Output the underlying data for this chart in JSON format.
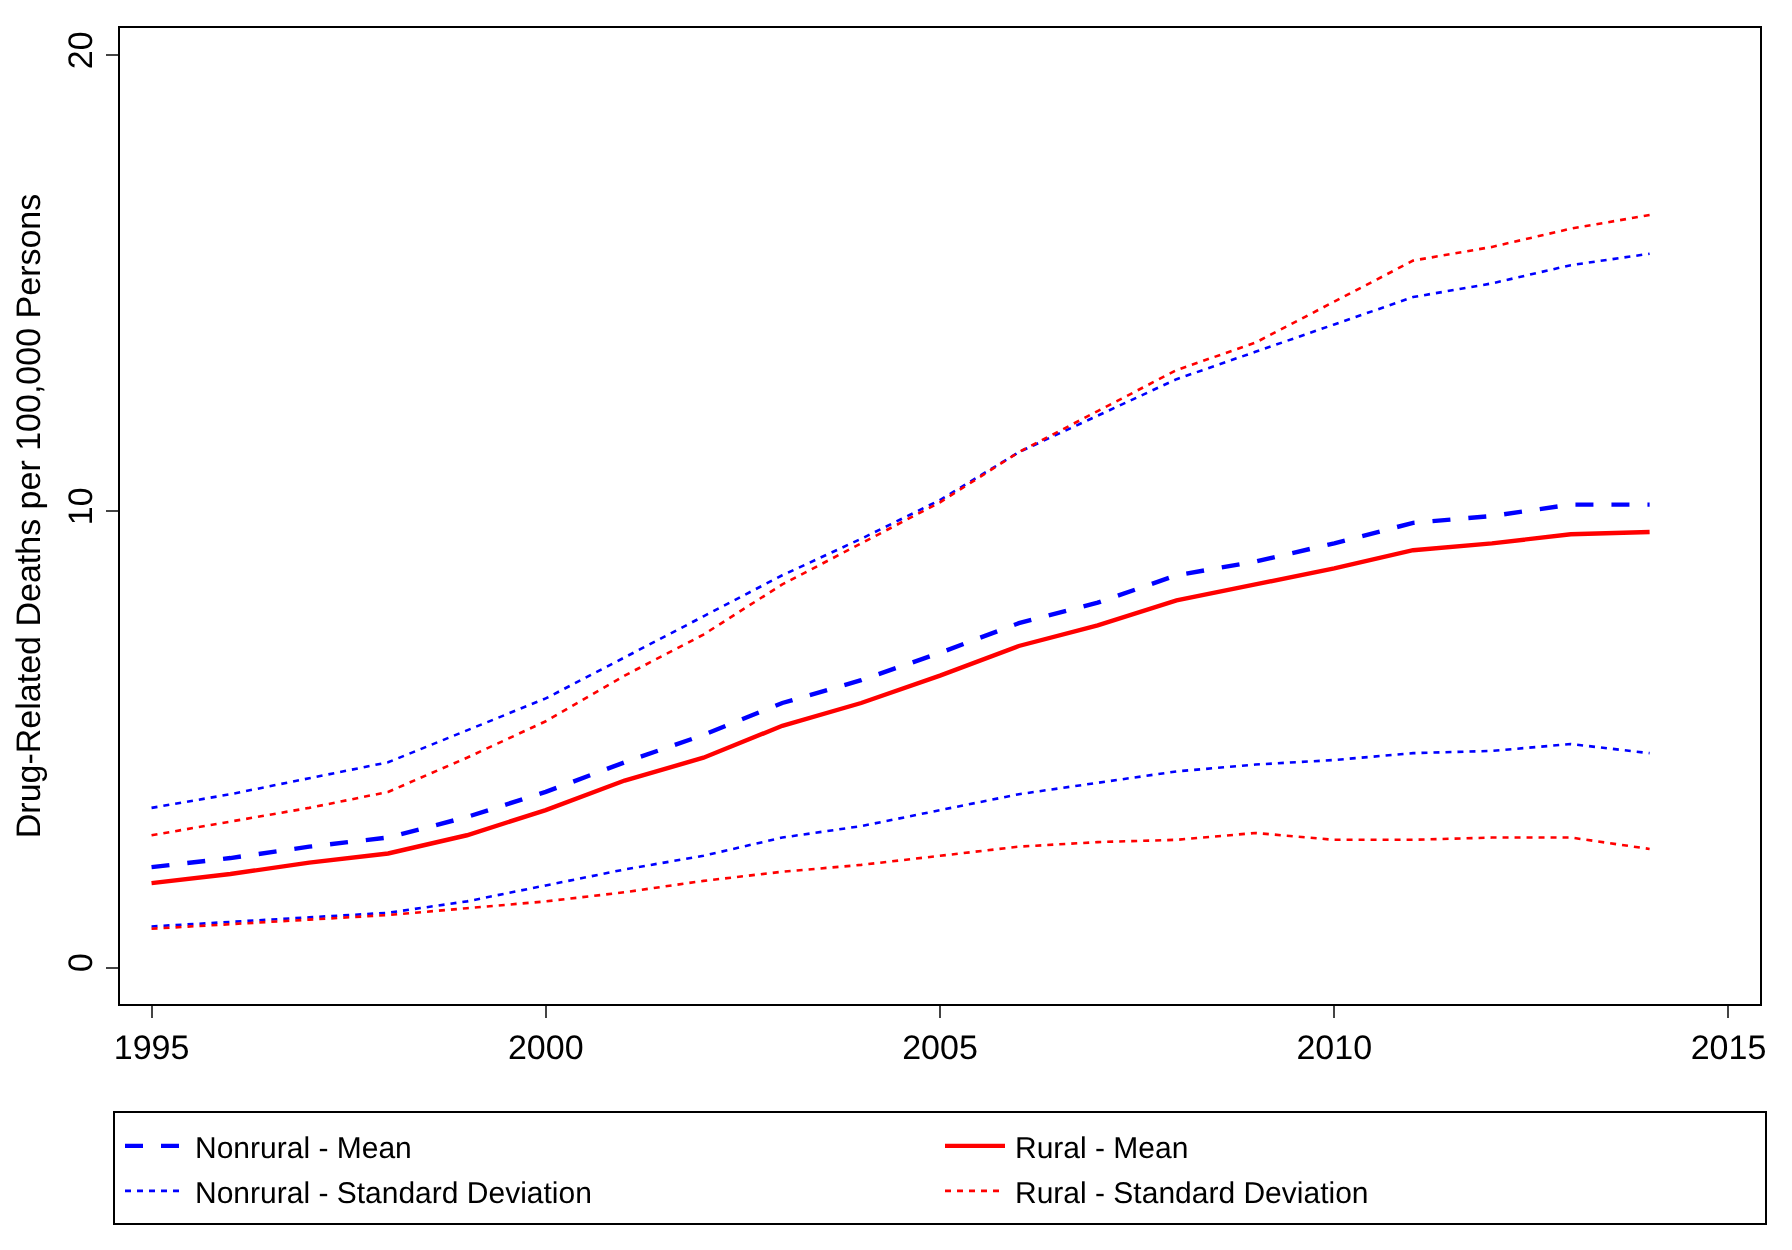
{
  "chart_data": {
    "type": "line",
    "ylabel": "Drug-Related Deaths per 100,000 Persons",
    "x": [
      1995,
      1996,
      1997,
      1998,
      1999,
      2000,
      2001,
      2002,
      2003,
      2004,
      2005,
      2006,
      2007,
      2008,
      2009,
      2010,
      2011,
      2012,
      2013,
      2014
    ],
    "xlim": [
      1994.6,
      2015.4
    ],
    "xticks": [
      1995,
      2000,
      2005,
      2010,
      2015
    ],
    "ylim": [
      -0.8,
      20.6
    ],
    "yticks": [
      0,
      10,
      20
    ],
    "legend": "bottom",
    "series": [
      {
        "name": "Nonrural - Mean",
        "color": "#0000ff",
        "line_style": "dashed",
        "values": [
          2.2,
          2.4,
          2.65,
          2.85,
          3.3,
          3.85,
          4.5,
          5.1,
          5.8,
          6.3,
          6.9,
          7.55,
          8.0,
          8.6,
          8.9,
          9.3,
          9.75,
          9.9,
          10.15,
          10.15
        ]
      },
      {
        "name": "Rural - Mean",
        "color": "#ff0000",
        "line_style": "solid",
        "values": [
          1.85,
          2.05,
          2.3,
          2.5,
          2.9,
          3.45,
          4.1,
          4.6,
          5.3,
          5.8,
          6.4,
          7.05,
          7.5,
          8.05,
          8.4,
          8.75,
          9.15,
          9.3,
          9.5,
          9.55
        ]
      },
      {
        "name": "Nonrural - Standard Deviation",
        "color": "#0000ff",
        "line_style": "dotted",
        "values": [
          3.5,
          3.8,
          4.15,
          4.5,
          5.2,
          5.9,
          6.8,
          7.7,
          8.6,
          9.4,
          10.25,
          11.3,
          12.1,
          12.9,
          13.5,
          14.1,
          14.7,
          15.0,
          15.4,
          15.65
        ]
      },
      {
        "name": "Rural - Standard Deviation",
        "color": "#ff0000",
        "line_style": "dotted",
        "values": [
          2.9,
          3.2,
          3.5,
          3.85,
          4.6,
          5.4,
          6.4,
          7.3,
          8.4,
          9.3,
          10.2,
          11.3,
          12.2,
          13.1,
          13.7,
          14.6,
          15.5,
          15.8,
          16.2,
          16.5
        ]
      },
      {
        "name": null,
        "color": "#0000ff",
        "line_style": "dotted",
        "values": [
          0.9,
          1.0,
          1.1,
          1.2,
          1.45,
          1.8,
          2.15,
          2.45,
          2.85,
          3.1,
          3.45,
          3.8,
          4.05,
          4.3,
          4.45,
          4.55,
          4.7,
          4.75,
          4.9,
          4.7
        ]
      },
      {
        "name": null,
        "color": "#ff0000",
        "line_style": "dotted",
        "values": [
          0.85,
          0.95,
          1.05,
          1.15,
          1.3,
          1.45,
          1.65,
          1.9,
          2.1,
          2.25,
          2.45,
          2.65,
          2.75,
          2.8,
          2.95,
          2.8,
          2.8,
          2.85,
          2.85,
          2.6
        ]
      }
    ]
  }
}
